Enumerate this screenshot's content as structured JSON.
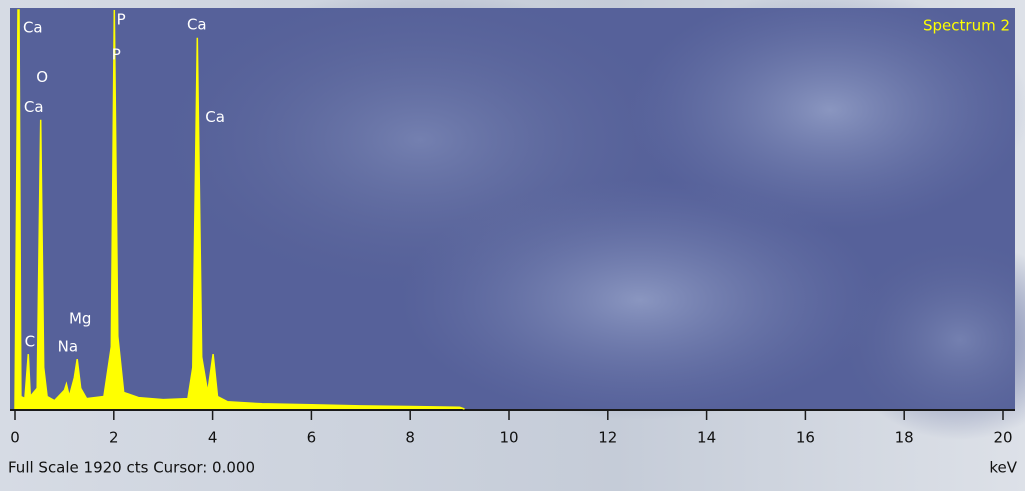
{
  "chart_data": {
    "type": "area",
    "title": "Spectrum 2",
    "footer": "Full Scale 1920 cts Cursor: 0.000",
    "x_label": "keV",
    "color": "#ffff00",
    "x": [
      0.0,
      0.06,
      0.08,
      0.12,
      0.2,
      0.27,
      0.31,
      0.45,
      0.52,
      0.58,
      0.65,
      0.8,
      1.0,
      1.04,
      1.1,
      1.2,
      1.26,
      1.33,
      1.45,
      1.8,
      1.95,
      2.01,
      2.08,
      2.2,
      2.5,
      3.0,
      3.5,
      3.6,
      3.69,
      3.78,
      3.9,
      4.01,
      4.1,
      4.3,
      5,
      6,
      7,
      8,
      9,
      9.1
    ],
    "values": [
      0,
      1920,
      1920,
      60,
      50,
      264,
      60,
      100,
      1392,
      200,
      60,
      40,
      90,
      120,
      60,
      150,
      240,
      100,
      50,
      60,
      300,
      1920,
      350,
      80,
      55,
      45,
      50,
      200,
      1786,
      250,
      80,
      264,
      60,
      35,
      25,
      20,
      15,
      12,
      8,
      0
    ],
    "xlim": [
      0,
      20
    ],
    "ylim": [
      0,
      1920
    ],
    "xticks": [
      0,
      2,
      4,
      6,
      8,
      10,
      12,
      14,
      16,
      18,
      20
    ],
    "annotations": [
      {
        "text": "Ca",
        "x": 0.36,
        "y": 1834
      },
      {
        "text": "O",
        "x": 0.55,
        "y": 1594
      },
      {
        "text": "Ca",
        "x": 0.38,
        "y": 1450
      },
      {
        "text": "P",
        "x": 2.15,
        "y": 1872
      },
      {
        "text": "P",
        "x": 2.05,
        "y": 1704
      },
      {
        "text": "Ca",
        "x": 3.68,
        "y": 1848
      },
      {
        "text": "Ca",
        "x": 4.05,
        "y": 1402
      },
      {
        "text": "Mg",
        "x": 1.32,
        "y": 432
      },
      {
        "text": "Na",
        "x": 1.07,
        "y": 298
      },
      {
        "text": "C",
        "x": 0.3,
        "y": 322
      }
    ]
  }
}
